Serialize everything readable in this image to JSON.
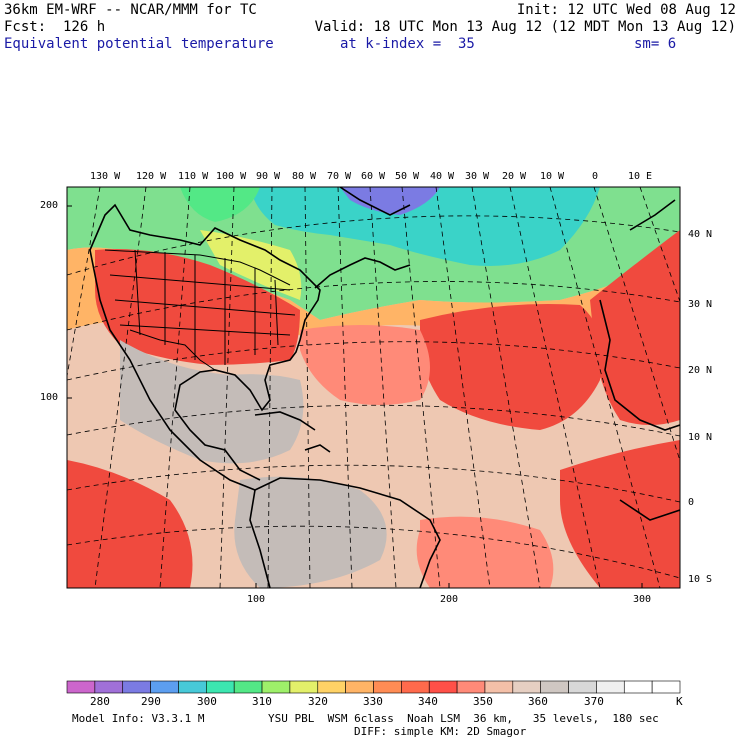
{
  "header": {
    "model_title": "36km EM-WRF -- NCAR/MMM for TC",
    "init": "Init: 12 UTC Wed 08 Aug 12",
    "forecast": "Fcst:  126 h",
    "valid": "Valid: 18 UTC Mon 13 Aug 12 (12 MDT Mon 13 Aug 12)",
    "field_name": "Equivalent potential temperature",
    "level": "at k-index =  35",
    "smoothing": "sm= 6"
  },
  "map": {
    "lon_labels": [
      "130 W",
      "120 W",
      "110 W",
      "100 W",
      "90 W",
      "80 W",
      "70 W",
      "60 W",
      "50 W",
      "40 W",
      "30 W",
      "20 W",
      "10 W",
      "0",
      "10 E"
    ],
    "lat_labels": [
      "40 N",
      "30 N",
      "20 N",
      "10 N",
      "0",
      "10 S"
    ],
    "grid_y_labels": [
      "200",
      "100"
    ],
    "grid_x_labels": [
      "100",
      "200",
      "300"
    ],
    "colors": {
      "cold_polar": "#3ad3c8",
      "cool": "#7fe08f",
      "mild": "#ffb466",
      "warm": "#ff8060",
      "hot": "#f04a3e",
      "gray": "#c4bcb8",
      "tan": "#eec8b2"
    }
  },
  "colorbar": {
    "labels": [
      "280",
      "290",
      "300",
      "310",
      "320",
      "330",
      "340",
      "350",
      "360",
      "370"
    ],
    "unit": "K",
    "colors": [
      "#cc66cc",
      "#a070d8",
      "#7b7be3",
      "#5c9ef0",
      "#47c9d8",
      "#3ce6b0",
      "#53e886",
      "#9ef06a",
      "#e3f06a",
      "#ffd266",
      "#ffb466",
      "#ff8c54",
      "#ff6a4c",
      "#ff5048",
      "#ff8a78",
      "#f4c0a8",
      "#e6cfc2",
      "#cfc7c2",
      "#d8d8d8",
      "#f0f0f0",
      "#ffffff",
      "#ffffff"
    ]
  },
  "footer": {
    "model_info": "Model Info: V3.3.1 M",
    "physics_line1": "YSU PBL  WSM 6class  Noah LSM  36 km,   35 levels,  180 sec",
    "physics_line2": "DIFF: simple KM: 2D Smagor"
  }
}
